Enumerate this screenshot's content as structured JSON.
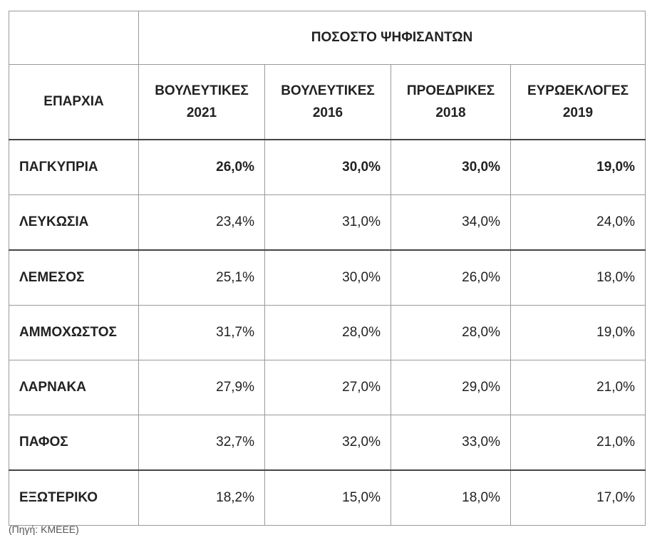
{
  "table": {
    "group_header": "ΠΟΣΟΣΤΟ ΨΗΦΙΣΑΝΤΩΝ",
    "region_header": "ΕΠΑΡΧΙΑ",
    "columns": [
      {
        "line1": "ΒΟΥΛΕΥΤΙΚΕΣ",
        "line2": "2021"
      },
      {
        "line1": "ΒΟΥΛΕΥΤΙΚΕΣ",
        "line2": "2016"
      },
      {
        "line1": "ΠΡΟΕΔΡΙΚΕΣ",
        "line2": "2018"
      },
      {
        "line1": "ΕΥΡΩΕΚΛΟΓΕΣ",
        "line2": "2019"
      }
    ],
    "rows": [
      {
        "region": "ΠΑΓΚΥΠΡΙΑ",
        "values": [
          "26,0%",
          "30,0%",
          "30,0%",
          "19,0%"
        ]
      },
      {
        "region": "ΛΕΥΚΩΣΙΑ",
        "values": [
          "23,4%",
          "31,0%",
          "34,0%",
          "24,0%"
        ]
      },
      {
        "region": "ΛΕΜΕΣΟΣ",
        "values": [
          "25,1%",
          "30,0%",
          "26,0%",
          "18,0%"
        ]
      },
      {
        "region": "ΑΜΜΟΧΩΣΤΟΣ",
        "values": [
          "31,7%",
          "28,0%",
          "28,0%",
          "19,0%"
        ]
      },
      {
        "region": "ΛΑΡΝΑΚΑ",
        "values": [
          "27,9%",
          "27,0%",
          "29,0%",
          "21,0%"
        ]
      },
      {
        "region": "ΠΑΦΟΣ",
        "values": [
          "32,7%",
          "32,0%",
          "33,0%",
          "21,0%"
        ]
      },
      {
        "region": "ΕΞΩΤΕΡΙΚΟ",
        "values": [
          "18,2%",
          "15,0%",
          "18,0%",
          "17,0%"
        ]
      }
    ]
  },
  "footer_note": "(Πηγή: ΚΜΕΕΕ)"
}
